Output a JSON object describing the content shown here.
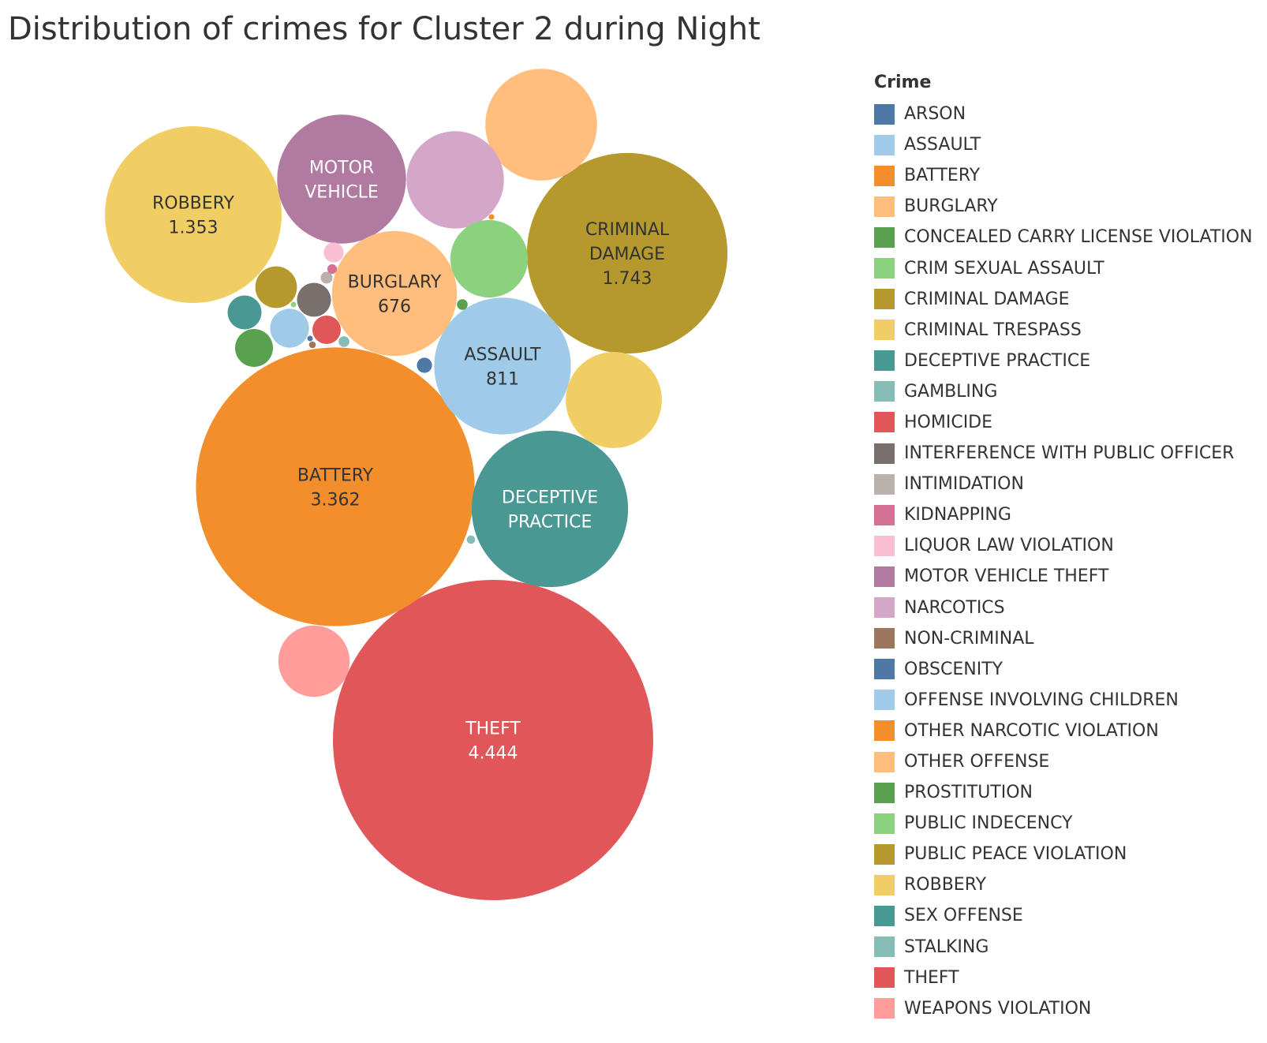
{
  "chart_data": {
    "type": "bubble",
    "title": "Distribution of crimes for Cluster 2 during Night",
    "legend_title": "Crime",
    "legend_position": "right",
    "categories": [
      {
        "name": "ARSON",
        "color": "#4e79a7",
        "value": 10
      },
      {
        "name": "ASSAULT",
        "color": "#a0cbe8",
        "value": 811
      },
      {
        "name": "BATTERY",
        "color": "#f28e2b",
        "value": 3362
      },
      {
        "name": "BURGLARY",
        "color": "#ffbe7d",
        "value": 676
      },
      {
        "name": "CONCEALED CARRY LICENSE VIOLATION",
        "color": "#59a14f",
        "value": 5
      },
      {
        "name": "CRIM SEXUAL ASSAULT",
        "color": "#8cd17d",
        "value": 260
      },
      {
        "name": "CRIMINAL DAMAGE",
        "color": "#b6992d",
        "value": 1743
      },
      {
        "name": "CRIMINAL TRESPASS",
        "color": "#f1ce63",
        "value": 400
      },
      {
        "name": "DECEPTIVE PRACTICE",
        "color": "#499894",
        "value": 1060
      },
      {
        "name": "GAMBLING",
        "color": "#86bcb6",
        "value": 5
      },
      {
        "name": "HOMICIDE",
        "color": "#e15759",
        "value": 35
      },
      {
        "name": "INTERFERENCE WITH PUBLIC OFFICER",
        "color": "#79706e",
        "value": 50
      },
      {
        "name": "INTIMIDATION",
        "color": "#bab0ac",
        "value": 6
      },
      {
        "name": "KIDNAPPING",
        "color": "#d37295",
        "value": 4
      },
      {
        "name": "LIQUOR LAW VIOLATION",
        "color": "#fabfd2",
        "value": 17
      },
      {
        "name": "MOTOR VEHICLE THEFT",
        "color": "#b07aa1",
        "value": 720
      },
      {
        "name": "NARCOTICS",
        "color": "#d4a6c8",
        "value": 410
      },
      {
        "name": "NON-CRIMINAL",
        "color": "#9d7660",
        "value": 2
      },
      {
        "name": "OBSCENITY",
        "color": "#4e79a7",
        "value": 1
      },
      {
        "name": "OFFENSE INVOLVING CHILDREN",
        "color": "#a0cbe8",
        "value": 65
      },
      {
        "name": "OTHER NARCOTIC VIOLATION",
        "color": "#f28e2b",
        "value": 1
      },
      {
        "name": "OTHER OFFENSE",
        "color": "#ffbe7d",
        "value": 540
      },
      {
        "name": "PROSTITUTION",
        "color": "#59a14f",
        "value": 62
      },
      {
        "name": "PUBLIC INDECENCY",
        "color": "#8cd17d",
        "value": 1
      },
      {
        "name": "PUBLIC PEACE VIOLATION",
        "color": "#b6992d",
        "value": 75
      },
      {
        "name": "ROBBERY",
        "color": "#f1ce63",
        "value": 1353
      },
      {
        "name": "SEX OFFENSE",
        "color": "#499894",
        "value": 50
      },
      {
        "name": "STALKING",
        "color": "#86bcb6",
        "value": 3
      },
      {
        "name": "THEFT",
        "color": "#e15759",
        "value": 4444
      },
      {
        "name": "WEAPONS VIOLATION",
        "color": "#ff9d9a",
        "value": 220
      }
    ],
    "labeled_bubbles": [
      {
        "category": "THEFT",
        "lines": [
          "THEFT",
          "4.444"
        ],
        "text_color": "#ffffff"
      },
      {
        "category": "BATTERY",
        "lines": [
          "BATTERY",
          "3.362"
        ],
        "text_color": "#333333"
      },
      {
        "category": "CRIMINAL DAMAGE",
        "lines": [
          "CRIMINAL",
          "DAMAGE",
          "1.743"
        ],
        "text_color": "#333333"
      },
      {
        "category": "ROBBERY",
        "lines": [
          "ROBBERY",
          "1.353"
        ],
        "text_color": "#333333"
      },
      {
        "category": "ASSAULT",
        "lines": [
          "ASSAULT",
          "811"
        ],
        "text_color": "#333333"
      },
      {
        "category": "BURGLARY",
        "lines": [
          "BURGLARY",
          "676"
        ],
        "text_color": "#333333"
      },
      {
        "category": "MOTOR VEHICLE THEFT",
        "lines": [
          "MOTOR",
          "VEHICLE"
        ],
        "text_color": "#ffffff"
      },
      {
        "category": "DECEPTIVE PRACTICE",
        "lines": [
          "DECEPTIVE",
          "PRACTICE"
        ],
        "text_color": "#ffffff"
      }
    ]
  }
}
